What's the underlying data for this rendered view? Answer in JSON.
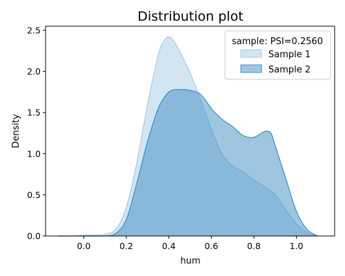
{
  "chart_data": {
    "type": "area",
    "title": "Distribution plot",
    "xlabel": "hum",
    "ylabel": "Density",
    "xlim": [
      -0.18,
      1.18
    ],
    "ylim": [
      0,
      2.55
    ],
    "x_ticks": [
      0.0,
      0.2,
      0.4,
      0.6,
      0.8,
      1.0
    ],
    "y_ticks": [
      0.0,
      0.5,
      1.0,
      1.5,
      2.0,
      2.5
    ],
    "x_tick_labels": [
      "0.0",
      "0.2",
      "0.4",
      "0.6",
      "0.8",
      "1.0"
    ],
    "y_tick_labels": [
      "0.0",
      "0.5",
      "1.0",
      "1.5",
      "2.0",
      "2.5"
    ],
    "grid": false,
    "legend": {
      "title": "sample: PSI=0.2560",
      "placement": "top-right"
    },
    "series": [
      {
        "name": "Sample 1",
        "fill_color": "#a6cbe3",
        "fill_opacity": 0.5,
        "line_color": "#a6cbe3",
        "x": [
          -0.12,
          -0.05,
          0.0,
          0.05,
          0.1,
          0.15,
          0.2,
          0.25,
          0.3,
          0.35,
          0.38,
          0.4,
          0.42,
          0.45,
          0.5,
          0.55,
          0.6,
          0.65,
          0.7,
          0.75,
          0.8,
          0.85,
          0.9,
          0.95,
          1.0,
          1.05,
          1.1
        ],
        "y": [
          0.0,
          0.0,
          0.01,
          0.01,
          0.02,
          0.08,
          0.35,
          0.9,
          1.6,
          2.2,
          2.38,
          2.42,
          2.38,
          2.25,
          1.98,
          1.65,
          1.3,
          1.0,
          0.85,
          0.78,
          0.68,
          0.6,
          0.5,
          0.32,
          0.15,
          0.04,
          0.0
        ]
      },
      {
        "name": "Sample 2",
        "fill_color": "#3e8ec4",
        "fill_opacity": 0.5,
        "line_color": "#3e8ec4",
        "x": [
          -0.12,
          0.0,
          0.1,
          0.15,
          0.2,
          0.25,
          0.3,
          0.35,
          0.4,
          0.45,
          0.5,
          0.55,
          0.6,
          0.65,
          0.7,
          0.75,
          0.8,
          0.85,
          0.88,
          0.9,
          0.95,
          1.0,
          1.05,
          1.1
        ],
        "y": [
          0.0,
          0.0,
          0.0,
          0.03,
          0.2,
          0.65,
          1.15,
          1.55,
          1.75,
          1.78,
          1.77,
          1.72,
          1.55,
          1.42,
          1.33,
          1.22,
          1.2,
          1.27,
          1.25,
          1.1,
          0.7,
          0.3,
          0.08,
          0.0
        ]
      }
    ]
  }
}
